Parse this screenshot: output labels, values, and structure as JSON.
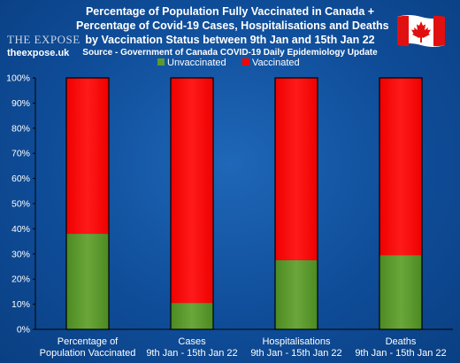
{
  "title_lines": [
    "Percentage of Population Fully Vaccinated in Canada +",
    "Percentage of Covid-19 Cases, Hospitalisations and Deaths",
    "by Vaccination Status between 9th Jan and 15th Jan 22"
  ],
  "source": "Source - Government of Canada COVID-19 Daily Epidemiology Update",
  "logo": {
    "word": "THE EXPOSE",
    "site": "theexpose.uk"
  },
  "flag_icon": "canada-flag-icon",
  "colors": {
    "unvaccinated": "#5c9a2e",
    "vaccinated": "#ff0000",
    "background": "#1558a8"
  },
  "chart_data": {
    "type": "bar",
    "stacked": true,
    "categories": [
      [
        "Percentage of",
        "Population Vaccinated"
      ],
      [
        "Cases",
        "9th Jan - 15th Jan 22"
      ],
      [
        "Hospitalisations",
        "9th Jan - 15th Jan 22"
      ],
      [
        "Deaths",
        "9th Jan - 15th Jan 22"
      ]
    ],
    "series": [
      {
        "name": "Unvaccinated",
        "values": [
          38,
          10.5,
          27.5,
          29.5
        ]
      },
      {
        "name": "Vaccinated",
        "values": [
          62,
          89.5,
          72.5,
          70.5
        ]
      }
    ],
    "ylim": [
      0,
      100
    ],
    "yticks": [
      "0%",
      "10%",
      "20%",
      "30%",
      "40%",
      "50%",
      "60%",
      "70%",
      "80%",
      "90%",
      "100%"
    ],
    "grid": false,
    "legend_position": "top"
  }
}
